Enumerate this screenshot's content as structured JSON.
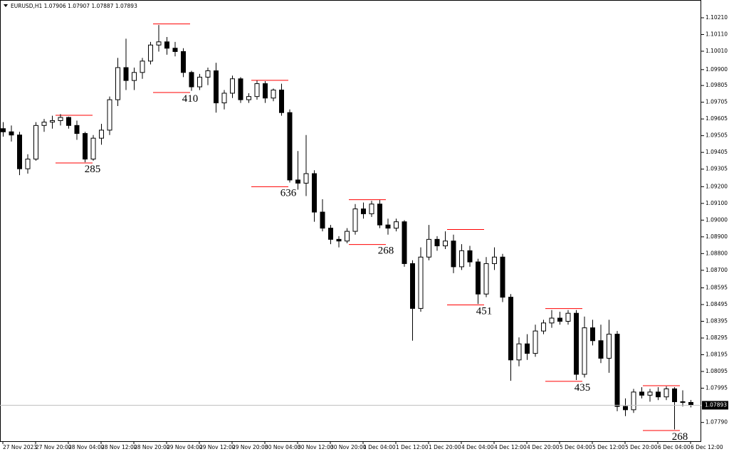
{
  "chart_data": {
    "type": "candlestick",
    "title": "EURUSD,H1 1.07906 1.07907 1.07887 1.07893",
    "x_labels": [
      "27 Nov 2023",
      "27 Nov 20:00",
      "28 Nov 04:00",
      "28 Nov 12:00",
      "28 Nov 20:00",
      "29 Nov 04:00",
      "29 Nov 12:00",
      "29 Nov 20:00",
      "30 Nov 04:00",
      "30 Nov 12:00",
      "30 Nov 20:00",
      "1 Dec 04:00",
      "1 Dec 12:00",
      "1 Dec 20:00",
      "4 Dec 04:00",
      "4 Dec 12:00",
      "4 Dec 20:00",
      "5 Dec 04:00",
      "5 Dec 12:00",
      "5 Dec 20:00",
      "6 Dec 04:00",
      "6 Dec 12:00"
    ],
    "ohlc": [
      [
        1.09547,
        1.09586,
        1.09499,
        1.09528
      ],
      [
        1.09528,
        1.09566,
        1.0947,
        1.09509
      ],
      [
        1.09509,
        1.09528,
        1.09269,
        1.09307
      ],
      [
        1.09307,
        1.09394,
        1.09278,
        1.09365
      ],
      [
        1.09365,
        1.09586,
        1.09355,
        1.09566
      ],
      [
        1.09566,
        1.09605,
        1.09528,
        1.09586
      ],
      [
        1.09586,
        1.09624,
        1.09547,
        1.09595
      ],
      [
        1.09595,
        1.09634,
        1.09566,
        1.09614
      ],
      [
        1.09614,
        1.09619,
        1.09547,
        1.09566
      ],
      [
        1.09566,
        1.09595,
        1.0948,
        1.09518
      ],
      [
        1.09518,
        1.09528,
        1.09346,
        1.09365
      ],
      [
        1.09365,
        1.09509,
        1.09355,
        1.0949
      ],
      [
        1.0949,
        1.09576,
        1.09451,
        1.09538
      ],
      [
        1.09538,
        1.09739,
        1.09509,
        1.0972
      ],
      [
        1.0972,
        1.0997,
        1.09682,
        1.09912
      ],
      [
        1.09912,
        1.10085,
        1.09778,
        1.09835
      ],
      [
        1.09835,
        1.09912,
        1.09778,
        1.09883
      ],
      [
        1.09883,
        1.0997,
        1.09845,
        1.09951
      ],
      [
        1.09951,
        1.10066,
        1.09931,
        1.10047
      ],
      [
        1.10047,
        1.10167,
        1.10008,
        1.10066
      ],
      [
        1.10066,
        1.10095,
        1.09989,
        1.10028
      ],
      [
        1.10028,
        1.10066,
        1.09979,
        1.10008
      ],
      [
        1.10008,
        1.10028,
        1.09855,
        1.09883
      ],
      [
        1.09883,
        1.09893,
        1.09773,
        1.09797
      ],
      [
        1.09797,
        1.09874,
        1.09778,
        1.09855
      ],
      [
        1.09855,
        1.09912,
        1.09807,
        1.09893
      ],
      [
        1.09893,
        1.09941,
        1.09643,
        1.09701
      ],
      [
        1.09701,
        1.09778,
        1.09662,
        1.09759
      ],
      [
        1.09759,
        1.09864,
        1.0973,
        1.09845
      ],
      [
        1.09845,
        1.09855,
        1.09701,
        1.0972
      ],
      [
        1.0972,
        1.09759,
        1.09701,
        1.09739
      ],
      [
        1.09739,
        1.09835,
        1.0972,
        1.09816
      ],
      [
        1.09816,
        1.09831,
        1.09701,
        1.0973
      ],
      [
        1.0973,
        1.09787,
        1.09711,
        1.09778
      ],
      [
        1.09778,
        1.09816,
        1.09624,
        1.09643
      ],
      [
        1.09643,
        1.09662,
        1.09225,
        1.0924
      ],
      [
        1.0924,
        1.09413,
        1.09182,
        1.09221
      ],
      [
        1.09221,
        1.09509,
        1.09144,
        1.09278
      ],
      [
        1.09278,
        1.09298,
        1.0899,
        1.09048
      ],
      [
        1.09048,
        1.09125,
        1.08933,
        1.08952
      ],
      [
        1.08952,
        1.08971,
        1.08856,
        1.08885
      ],
      [
        1.08885,
        1.08904,
        1.08837,
        1.08875
      ],
      [
        1.08875,
        1.08952,
        1.08862,
        1.08933
      ],
      [
        1.08933,
        1.09096,
        1.08913,
        1.09067
      ],
      [
        1.09067,
        1.09105,
        1.09009,
        1.09038
      ],
      [
        1.09038,
        1.09115,
        1.09019,
        1.09096
      ],
      [
        1.09096,
        1.0912,
        1.08952,
        1.08971
      ],
      [
        1.08971,
        1.09009,
        1.08913,
        1.08952
      ],
      [
        1.08952,
        1.09009,
        1.08933,
        1.0899
      ],
      [
        1.0899,
        1.09,
        1.08721,
        1.0874
      ],
      [
        1.0874,
        1.0876,
        1.08279,
        1.08472
      ],
      [
        1.08472,
        1.08837,
        1.08452,
        1.08779
      ],
      [
        1.08779,
        1.08971,
        1.0876,
        1.08885
      ],
      [
        1.08885,
        1.08904,
        1.08817,
        1.08846
      ],
      [
        1.08846,
        1.08933,
        1.08827,
        1.08875
      ],
      [
        1.08875,
        1.08913,
        1.08683,
        1.08721
      ],
      [
        1.08721,
        1.08856,
        1.08702,
        1.08817
      ],
      [
        1.08817,
        1.08846,
        1.08721,
        1.0875
      ],
      [
        1.0875,
        1.08769,
        1.08499,
        1.08558
      ],
      [
        1.08558,
        1.08779,
        1.08539,
        1.0874
      ],
      [
        1.0874,
        1.08837,
        1.08702,
        1.08779
      ],
      [
        1.08779,
        1.08798,
        1.0851,
        1.08539
      ],
      [
        1.08539,
        1.08558,
        1.08039,
        1.08164
      ],
      [
        1.08164,
        1.08299,
        1.08126,
        1.0826
      ],
      [
        1.0826,
        1.08318,
        1.08164,
        1.08203
      ],
      [
        1.08203,
        1.08375,
        1.08183,
        1.08337
      ],
      [
        1.08337,
        1.08404,
        1.08318,
        1.08385
      ],
      [
        1.08385,
        1.08462,
        1.08356,
        1.08414
      ],
      [
        1.08414,
        1.08452,
        1.08375,
        1.08395
      ],
      [
        1.08395,
        1.08462,
        1.08375,
        1.08443
      ],
      [
        1.08443,
        1.08462,
        1.08044,
        1.08078
      ],
      [
        1.08078,
        1.08423,
        1.08059,
        1.08356
      ],
      [
        1.08356,
        1.08404,
        1.08251,
        1.08279
      ],
      [
        1.08279,
        1.08375,
        1.08145,
        1.08174
      ],
      [
        1.08174,
        1.08404,
        1.08087,
        1.08318
      ],
      [
        1.08318,
        1.08337,
        1.07857,
        1.07886
      ],
      [
        1.07886,
        1.07934,
        1.07828,
        1.07866
      ],
      [
        1.07866,
        1.07991,
        1.07847,
        1.07972
      ],
      [
        1.07972,
        1.08001,
        1.07934,
        1.07953
      ],
      [
        1.07953,
        1.07991,
        1.07914,
        1.07972
      ],
      [
        1.07972,
        1.08001,
        1.07924,
        1.07943
      ],
      [
        1.07943,
        1.08006,
        1.07924,
        1.07991
      ],
      [
        1.07991,
        1.08001,
        1.07748,
        1.07914
      ],
      [
        1.07914,
        1.07982,
        1.07886,
        1.0791
      ],
      [
        1.0791,
        1.07925,
        1.0788,
        1.07893
      ]
    ],
    "ylim": [
      1.07678,
      1.10295
    ],
    "yticks": [
      {
        "value": 1.0779,
        "label": "1.07790"
      },
      1.07995,
      1.08095,
      1.08195,
      1.08295,
      1.08395,
      1.08495,
      1.08595,
      {
        "value": 1.087,
        "label": "1.08700"
      },
      {
        "value": 1.088,
        "label": "1.08800"
      },
      {
        "value": 1.089,
        "label": "1.08900"
      },
      {
        "value": 1.09,
        "label": "1.09000"
      },
      {
        "value": 1.091,
        "label": "1.09100"
      },
      {
        "value": 1.092,
        "label": "1.09200"
      },
      1.09305,
      1.09405,
      1.09505,
      1.09605,
      1.09705,
      1.09805,
      {
        "value": 1.099,
        "label": "1.09900"
      },
      {
        "value": 1.1001,
        "label": "1.10010"
      },
      {
        "value": 1.1011,
        "label": "1.10110"
      },
      {
        "value": 1.1021,
        "label": "1.10210"
      }
    ],
    "current_price": 1.07893,
    "annotations": [
      {
        "value": 285,
        "high": 1.09627,
        "low": 1.09342
      },
      {
        "value": 410,
        "high": 1.10173,
        "low": 1.09763
      },
      {
        "value": 636,
        "high": 1.09836,
        "low": 1.092
      },
      {
        "value": 268,
        "high": 1.09122,
        "low": 1.08854
      },
      {
        "value": 451,
        "high": 1.08944,
        "low": 1.08493
      },
      {
        "value": 435,
        "high": 1.08471,
        "low": 1.08036
      },
      {
        "value": 268,
        "high": 1.0801,
        "low": 1.07742
      }
    ],
    "bull_color": "#ffffff",
    "bear_color": "#000000",
    "annotation_color": "#ff0000"
  }
}
